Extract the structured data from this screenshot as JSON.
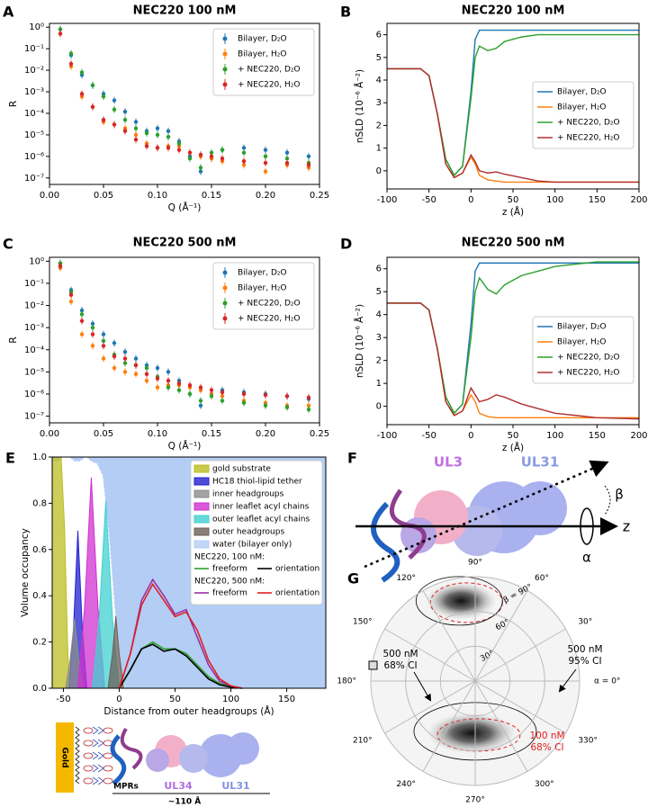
{
  "chart_data": [
    {
      "panel": "A",
      "type": "scatter",
      "title": "NEC220 100 nM",
      "xlabel": "Q (Å⁻¹)",
      "ylabel": "R",
      "log_y": true,
      "xlim": [
        0,
        0.25
      ],
      "ylim": [
        5e-08,
        1.5
      ],
      "xticks": [
        {
          "value": 0,
          "label": "0.00"
        },
        0.05,
        {
          "value": 0.1,
          "label": "0.10"
        },
        0.15,
        {
          "value": 0.2,
          "label": "0.20"
        },
        0.25
      ],
      "yticks": [
        {
          "value": 1e-07,
          "label": "10⁻⁷"
        },
        {
          "value": 1e-06,
          "label": "10⁻⁶"
        },
        {
          "value": 1e-05,
          "label": "10⁻⁵"
        },
        {
          "value": 0.0001,
          "label": "10⁻⁴"
        },
        {
          "value": 0.001,
          "label": "10⁻³"
        },
        {
          "value": 0.01,
          "label": "10⁻²"
        },
        {
          "value": 0.1,
          "label": "10⁻¹"
        },
        {
          "value": 1,
          "label": "10⁰"
        }
      ],
      "legend": "upper right",
      "x": [
        0.01,
        0.02,
        0.03,
        0.04,
        0.05,
        0.06,
        0.07,
        0.08,
        0.09,
        0.1,
        0.11,
        0.12,
        0.13,
        0.14,
        0.15,
        0.16,
        0.18,
        0.2,
        0.22,
        0.24
      ],
      "series": [
        {
          "name": "Bilayer, D₂O",
          "color": "#1f77b4",
          "values": [
            0.8,
            0.05,
            0.006,
            0.002,
            0.0008,
            0.0004,
            0.00012,
            4e-05,
            1.5e-05,
            2e-05,
            1.5e-05,
            5e-06,
            1e-06,
            2e-07,
            8e-07,
            2e-06,
            2.5e-06,
            2e-06,
            1.5e-06,
            1e-06
          ]
        },
        {
          "name": "Bilayer, H₂O",
          "color": "#ff7f0e",
          "values": [
            0.5,
            0.015,
            0.0006,
            0.0002,
            4e-05,
            3e-05,
            2e-05,
            1e-05,
            4e-06,
            2.5e-06,
            3e-06,
            3e-06,
            1.5e-06,
            1e-06,
            8e-07,
            6e-07,
            4e-07,
            2e-07,
            4e-07,
            3e-07
          ]
        },
        {
          "name": "+ NEC220, D₂O",
          "color": "#2ca02c",
          "values": [
            0.8,
            0.06,
            0.008,
            0.002,
            0.0006,
            0.00015,
            5e-05,
            2e-05,
            1.2e-05,
            1e-05,
            8e-06,
            4e-06,
            8e-07,
            3e-07,
            1.5e-06,
            2e-06,
            1.5e-06,
            1e-06,
            8e-07,
            5e-07
          ]
        },
        {
          "name": "+ NEC220, H₂O",
          "color": "#d62728",
          "values": [
            0.5,
            0.02,
            0.0008,
            0.0002,
            5e-05,
            3e-05,
            1.5e-05,
            6e-06,
            3e-06,
            2.5e-06,
            2.5e-06,
            2e-06,
            1.5e-06,
            1.2e-06,
            1e-06,
            8e-07,
            6e-07,
            5e-07,
            5e-07,
            4e-07
          ]
        }
      ]
    },
    {
      "panel": "B",
      "type": "line",
      "title": "NEC220 100 nM",
      "xlabel": "z (Å)",
      "ylabel": "nSLD (10⁻⁶ Å⁻²)",
      "xlim": [
        -100,
        200
      ],
      "ylim": [
        -0.8,
        6.5
      ],
      "xticks": [
        -100,
        -50,
        0,
        50,
        100,
        150,
        200
      ],
      "yticks": [
        0,
        1,
        2,
        3,
        4,
        5,
        6
      ],
      "legend": "center right",
      "x": [
        -100,
        -60,
        -50,
        -40,
        -30,
        -20,
        -10,
        0,
        5,
        10,
        20,
        30,
        40,
        60,
        80,
        100,
        150,
        200
      ],
      "series": [
        {
          "name": "Bilayer, D₂O",
          "color": "#1f77b4",
          "values": [
            4.5,
            4.5,
            4.2,
            2.5,
            0.5,
            -0.2,
            0.2,
            3.5,
            5.8,
            6.2,
            6.2,
            6.2,
            6.2,
            6.2,
            6.2,
            6.2,
            6.2,
            6.2
          ]
        },
        {
          "name": "Bilayer, H₂O",
          "color": "#ff7f0e",
          "values": [
            4.5,
            4.5,
            4.2,
            2.5,
            0.3,
            -0.3,
            -0.1,
            0.6,
            0.3,
            -0.2,
            -0.4,
            -0.45,
            -0.5,
            -0.5,
            -0.5,
            -0.5,
            -0.5,
            -0.5
          ]
        },
        {
          "name": "+ NEC220, D₂O",
          "color": "#2ca02c",
          "values": [
            4.5,
            4.5,
            4.2,
            2.5,
            0.5,
            -0.2,
            0.2,
            3.2,
            5.0,
            5.5,
            5.3,
            5.4,
            5.7,
            5.9,
            6.0,
            6.0,
            6.0,
            6.0
          ]
        },
        {
          "name": "+ NEC220, H₂O",
          "color": "#b03030",
          "values": [
            4.5,
            4.5,
            4.2,
            2.5,
            0.3,
            -0.3,
            -0.1,
            0.7,
            0.4,
            0.0,
            -0.1,
            -0.05,
            -0.15,
            -0.3,
            -0.45,
            -0.5,
            -0.5,
            -0.5
          ]
        }
      ]
    },
    {
      "panel": "C",
      "type": "scatter",
      "title": "NEC220 500 nM",
      "xlabel": "Q (Å⁻¹)",
      "ylabel": "R",
      "log_y": true,
      "xlim": [
        0,
        0.25
      ],
      "ylim": [
        5e-08,
        1.5
      ],
      "xticks": [
        {
          "value": 0,
          "label": "0.00"
        },
        0.05,
        {
          "value": 0.1,
          "label": "0.10"
        },
        0.15,
        {
          "value": 0.2,
          "label": "0.20"
        },
        0.25
      ],
      "yticks": [
        {
          "value": 1e-07,
          "label": "10⁻⁷"
        },
        {
          "value": 1e-06,
          "label": "10⁻⁶"
        },
        {
          "value": 1e-05,
          "label": "10⁻⁵"
        },
        {
          "value": 0.0001,
          "label": "10⁻⁴"
        },
        {
          "value": 0.001,
          "label": "10⁻³"
        },
        {
          "value": 0.01,
          "label": "10⁻²"
        },
        {
          "value": 0.1,
          "label": "10⁻¹"
        },
        {
          "value": 1,
          "label": "10⁰"
        }
      ],
      "legend": "upper right",
      "x": [
        0.01,
        0.02,
        0.03,
        0.04,
        0.05,
        0.06,
        0.07,
        0.08,
        0.09,
        0.1,
        0.11,
        0.12,
        0.13,
        0.14,
        0.15,
        0.16,
        0.18,
        0.2,
        0.22,
        0.24
      ],
      "series": [
        {
          "name": "Bilayer, D₂O",
          "color": "#1f77b4",
          "values": [
            0.8,
            0.05,
            0.006,
            0.0015,
            0.0005,
            0.0002,
            8e-05,
            4e-05,
            2e-05,
            1.5e-05,
            1e-05,
            4e-06,
            1e-06,
            3e-07,
            1e-06,
            1.5e-06,
            1.2e-06,
            1e-06,
            8e-07,
            6e-07
          ]
        },
        {
          "name": "Bilayer, H₂O",
          "color": "#ff7f0e",
          "values": [
            0.5,
            0.015,
            0.0005,
            0.00015,
            4e-05,
            1.5e-05,
            1e-05,
            8e-06,
            4e-06,
            2e-06,
            2.5e-06,
            2.5e-06,
            2e-06,
            1.5e-06,
            1e-06,
            8e-07,
            5e-07,
            4e-07,
            3e-07,
            3e-07
          ]
        },
        {
          "name": "+ NEC220, D₂O",
          "color": "#2ca02c",
          "values": [
            0.8,
            0.04,
            0.004,
            0.001,
            0.00025,
            6e-05,
            2.5e-05,
            2e-05,
            1.5e-05,
            6e-06,
            2e-06,
            1.5e-06,
            1e-06,
            5e-07,
            8e-07,
            5e-07,
            4e-07,
            3e-07,
            2.5e-07,
            2e-07
          ]
        },
        {
          "name": "+ NEC220, H₂O",
          "color": "#d62728",
          "values": [
            0.6,
            0.03,
            0.002,
            0.0005,
            0.00015,
            5e-05,
            4e-05,
            2e-05,
            8e-06,
            5e-06,
            4e-06,
            3e-06,
            2.5e-06,
            2e-06,
            1.5e-06,
            1.2e-06,
            1e-06,
            9e-07,
            8e-07,
            7e-07
          ]
        }
      ]
    },
    {
      "panel": "D",
      "type": "line",
      "title": "NEC220 500 nM",
      "xlabel": "z (Å)",
      "ylabel": "nSLD (10⁻⁶ Å⁻²)",
      "xlim": [
        -100,
        200
      ],
      "ylim": [
        -0.8,
        6.5
      ],
      "xticks": [
        -100,
        -50,
        0,
        50,
        100,
        150,
        200
      ],
      "yticks": [
        0,
        1,
        2,
        3,
        4,
        5,
        6
      ],
      "legend": "center right",
      "x": [
        -100,
        -60,
        -50,
        -40,
        -30,
        -20,
        -10,
        0,
        5,
        10,
        20,
        30,
        40,
        60,
        80,
        100,
        150,
        200
      ],
      "series": [
        {
          "name": "Bilayer, D₂O",
          "color": "#1f77b4",
          "values": [
            4.5,
            4.5,
            4.2,
            2.5,
            0.4,
            -0.3,
            0.1,
            3.6,
            5.9,
            6.25,
            6.25,
            6.25,
            6.25,
            6.25,
            6.25,
            6.25,
            6.25,
            6.25
          ]
        },
        {
          "name": "Bilayer, H₂O",
          "color": "#ff7f0e",
          "values": [
            4.5,
            4.5,
            4.2,
            2.5,
            0.2,
            -0.4,
            -0.2,
            0.5,
            0.2,
            -0.3,
            -0.45,
            -0.5,
            -0.5,
            -0.5,
            -0.5,
            -0.5,
            -0.5,
            -0.5
          ]
        },
        {
          "name": "+ NEC220, D₂O",
          "color": "#2ca02c",
          "values": [
            4.5,
            4.5,
            4.2,
            2.5,
            0.4,
            -0.3,
            0.1,
            3.0,
            5.0,
            5.6,
            5.1,
            4.9,
            5.3,
            5.7,
            5.9,
            6.1,
            6.3,
            6.3
          ]
        },
        {
          "name": "+ NEC220, H₂O",
          "color": "#b03030",
          "values": [
            4.5,
            4.5,
            4.2,
            2.5,
            0.2,
            -0.4,
            -0.2,
            0.8,
            0.5,
            0.2,
            0.3,
            0.5,
            0.4,
            0.1,
            -0.1,
            -0.3,
            -0.5,
            -0.55
          ]
        }
      ]
    },
    {
      "panel": "E",
      "type": "area",
      "xlabel": "Distance from outer headgroups (Å)",
      "ylabel": "Volume occupancy",
      "xlim": [
        -60,
        185
      ],
      "ylim": [
        0,
        1
      ],
      "xticks": [
        -50,
        0,
        50,
        100,
        150
      ],
      "yticks": [
        {
          "value": 0,
          "label": "0.0"
        },
        0.2,
        0.4,
        0.6,
        0.8,
        {
          "value": 1,
          "label": "1.0"
        }
      ],
      "legend": "upper right",
      "series": [
        {
          "name": "gold substrate",
          "color": "#bcbd22",
          "style": "fill",
          "x": [
            -60,
            -52,
            -49,
            -46,
            -44
          ],
          "values": [
            1,
            1,
            0.7,
            0.15,
            0
          ]
        },
        {
          "name": "HC18 thiol-lipid tether",
          "color": "#2020d0",
          "style": "fill",
          "x": [
            -45,
            -41,
            -37,
            -33,
            -29
          ],
          "values": [
            0,
            0.25,
            0.68,
            0.25,
            0
          ]
        },
        {
          "name": "inner headgroups",
          "color": "#8c8c8c",
          "style": "fill",
          "x": [
            -48,
            -44,
            -40,
            -36,
            -32
          ],
          "values": [
            0,
            0.12,
            0.3,
            0.12,
            0
          ]
        },
        {
          "name": "inner leaflet acyl chains",
          "color": "#d030d0",
          "style": "fill",
          "x": [
            -37,
            -31,
            -25,
            -19,
            -13
          ],
          "values": [
            0,
            0.35,
            0.91,
            0.35,
            0
          ]
        },
        {
          "name": "outer leaflet acyl chains",
          "color": "#40d0d0",
          "style": "fill",
          "x": [
            -24,
            -18,
            -12,
            -6,
            0
          ],
          "values": [
            0,
            0.3,
            0.81,
            0.3,
            0
          ]
        },
        {
          "name": "outer headgroups",
          "color": "#6d5f58",
          "style": "fill",
          "x": [
            -10,
            -6,
            -3,
            0,
            4
          ],
          "values": [
            0,
            0.15,
            0.31,
            0.15,
            0
          ]
        },
        {
          "name": "water (bilayer only)",
          "color": "#b3cdf5",
          "style": "water",
          "x": [
            -60,
            -55,
            -50,
            -45,
            -40,
            -35,
            -30,
            -25,
            -20,
            -15,
            -10,
            -5,
            0,
            5,
            10,
            185
          ],
          "values": [
            0.02,
            0.02,
            0,
            0,
            0.02,
            0.02,
            0,
            0.02,
            0.03,
            0.08,
            0.3,
            0.6,
            0.9,
            1,
            1,
            1
          ]
        },
        {
          "name": "freeform",
          "group": "NEC220, 100 nM:",
          "color": "#2ca02c",
          "style": "line",
          "x": [
            0,
            10,
            20,
            30,
            40,
            50,
            60,
            70,
            80,
            90,
            100,
            110
          ],
          "values": [
            0,
            0.08,
            0.17,
            0.2,
            0.17,
            0.17,
            0.15,
            0.1,
            0.05,
            0.02,
            0.01,
            0
          ]
        },
        {
          "name": "orientation",
          "group": "NEC220, 100 nM:",
          "color": "#000000",
          "style": "line",
          "x": [
            0,
            10,
            20,
            30,
            40,
            50,
            60,
            70,
            80,
            90,
            100,
            110
          ],
          "values": [
            0,
            0.08,
            0.17,
            0.19,
            0.16,
            0.17,
            0.14,
            0.09,
            0.04,
            0.015,
            0.005,
            0
          ]
        },
        {
          "name": "freeform",
          "group": "NEC220, 500 nM:",
          "color": "#9b30a0",
          "style": "line",
          "x": [
            0,
            10,
            20,
            30,
            40,
            50,
            60,
            70,
            80,
            90,
            100,
            110
          ],
          "values": [
            0,
            0.15,
            0.38,
            0.47,
            0.4,
            0.32,
            0.34,
            0.22,
            0.1,
            0.03,
            0.01,
            0
          ]
        },
        {
          "name": "orientation",
          "group": "NEC220, 500 nM:",
          "color": "#e02020",
          "style": "line",
          "x": [
            0,
            10,
            20,
            30,
            40,
            50,
            60,
            70,
            80,
            90,
            100,
            110
          ],
          "values": [
            0,
            0.15,
            0.36,
            0.45,
            0.38,
            0.31,
            0.33,
            0.25,
            0.12,
            0.04,
            0.01,
            0
          ]
        }
      ]
    },
    {
      "panel": "G",
      "type": "polar",
      "rlim": [
        0,
        90
      ],
      "theta_ticks": [
        {
          "value": 0,
          "label": "α = 0°"
        },
        {
          "value": 30,
          "label": "30°"
        },
        {
          "value": 60,
          "label": "60°"
        },
        {
          "value": 90,
          "label": "90°"
        },
        {
          "value": 120,
          "label": "120°"
        },
        {
          "value": 150,
          "label": "150°"
        },
        {
          "value": 180,
          "label": "180°"
        },
        {
          "value": 210,
          "label": "210°"
        },
        {
          "value": 240,
          "label": "240°"
        },
        {
          "value": 270,
          "label": "270°"
        },
        {
          "value": 300,
          "label": "300°"
        },
        {
          "value": 330,
          "label": "330°"
        }
      ],
      "rticks": [
        {
          "value": 30,
          "label": "30°"
        },
        {
          "value": 60,
          "label": "60°"
        },
        {
          "value": 90,
          "label": "β = 90°"
        }
      ],
      "annotations": [
        {
          "text": [
            "500 nM",
            "95% CI"
          ]
        },
        {
          "text": [
            "500 nM",
            "68% CI"
          ]
        },
        {
          "text": [
            "100 nM",
            "68% CI"
          ],
          "color": "#e02020"
        }
      ]
    }
  ],
  "schematic": {
    "labels": [
      "Gold",
      "MPRs",
      "UL34",
      "UL31",
      "~110 Å"
    ]
  },
  "figure_f": {
    "panel": "F",
    "labels": [
      "UL3",
      "UL31",
      "z",
      "α",
      "β"
    ]
  }
}
